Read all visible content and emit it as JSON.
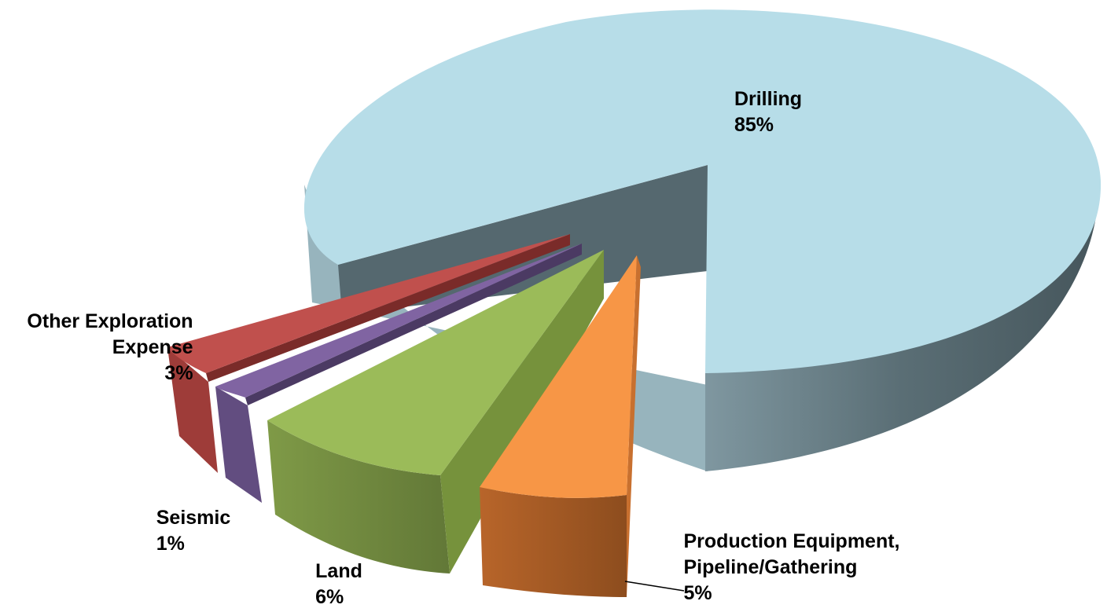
{
  "chart_data": {
    "type": "pie",
    "style": "3d-exploded",
    "title": "",
    "slices": [
      {
        "label": [
          "Drilling"
        ],
        "percent": 85,
        "percent_label": "85%",
        "color": "#b7dde8"
      },
      {
        "label": [
          "Production Equipment,",
          "Pipeline/Gathering"
        ],
        "percent": 5,
        "percent_label": "5%",
        "color": "#f79646"
      },
      {
        "label": [
          "Land"
        ],
        "percent": 6,
        "percent_label": "6%",
        "color": "#9bbb59"
      },
      {
        "label": [
          "Seismic"
        ],
        "percent": 1,
        "percent_label": "1%",
        "color": "#8064a2"
      },
      {
        "label": [
          "Other Exploration",
          "Expense"
        ],
        "percent": 3,
        "percent_label": "3%",
        "color": "#c0504d"
      }
    ]
  }
}
